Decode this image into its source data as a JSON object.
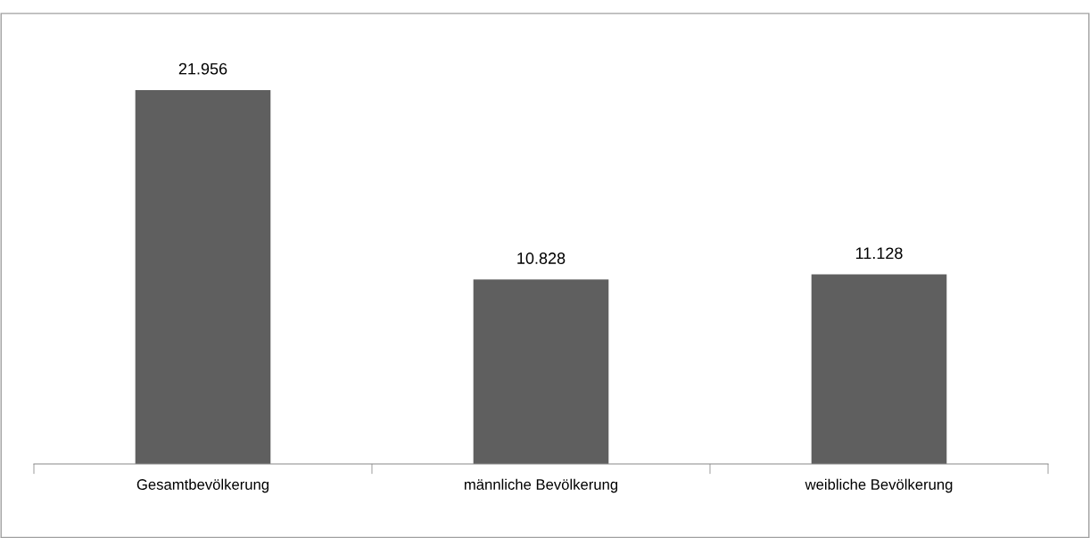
{
  "chart_data": {
    "type": "bar",
    "categories": [
      "Gesamtbevölkerung",
      "männliche Bevölkerung",
      "weibliche Bevölkerung"
    ],
    "values": [
      21956,
      10828,
      11128
    ],
    "value_labels": [
      "21.956",
      "10.828",
      "11.128"
    ],
    "color": "#5f5f5f",
    "tick_labels": "x",
    "grid": false,
    "legend": false
  }
}
